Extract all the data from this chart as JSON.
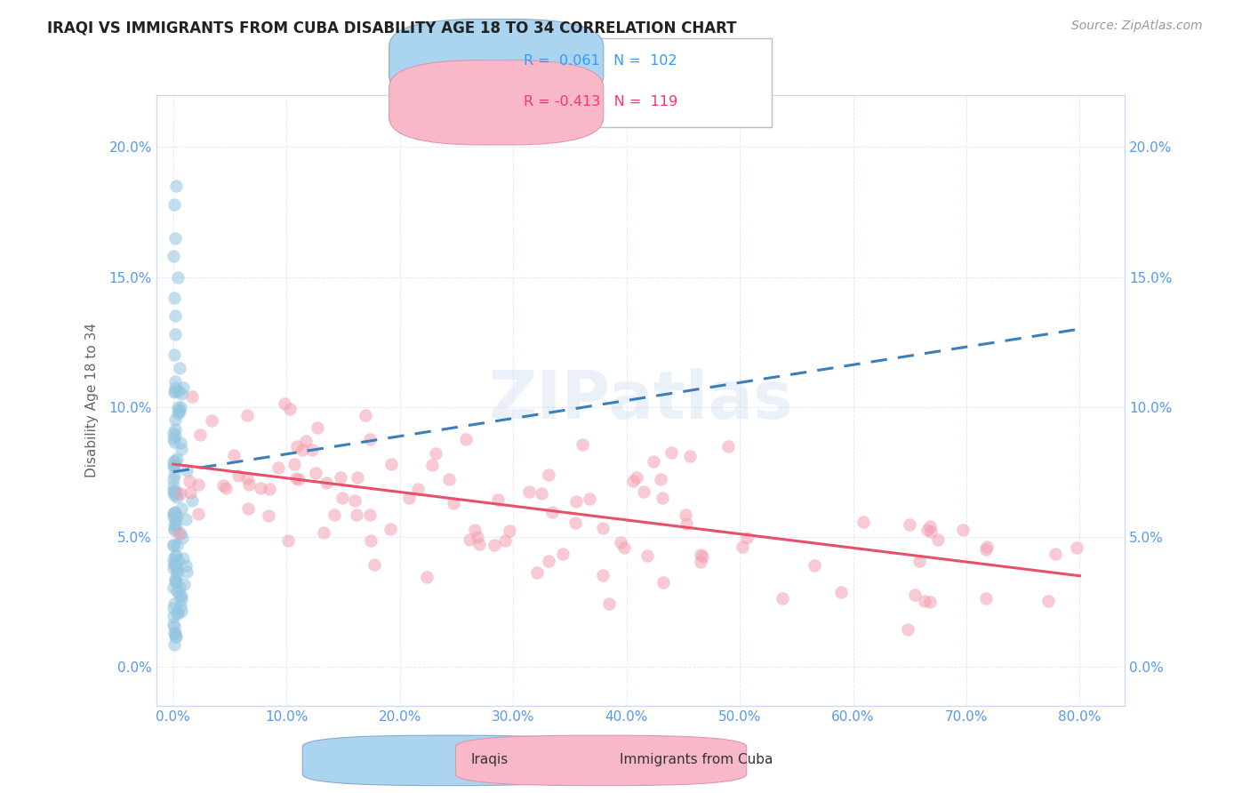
{
  "title": "IRAQI VS IMMIGRANTS FROM CUBA DISABILITY AGE 18 TO 34 CORRELATION CHART",
  "source": "Source: ZipAtlas.com",
  "ylabel": "Disability Age 18 to 34",
  "watermark": "ZIPatlas",
  "x_ticks": [
    0.0,
    10.0,
    20.0,
    30.0,
    40.0,
    50.0,
    60.0,
    70.0,
    80.0
  ],
  "y_ticks": [
    0.0,
    5.0,
    10.0,
    15.0,
    20.0
  ],
  "xlim": [
    -1.5,
    84
  ],
  "ylim": [
    -1.5,
    22
  ],
  "iraqi_color": "#93c6e0",
  "iraqi_line_color": "#3a7fba",
  "cuba_color": "#f4a0b0",
  "cuba_line_color": "#e8506a",
  "tick_color": "#5599ee",
  "axis_color": "#c8d8f0",
  "grid_color": "#dde8ff",
  "title_color": "#222222",
  "source_color": "#999999",
  "legend_R1_color": "#3399ff",
  "legend_R2_color": "#ff3366",
  "legend_box_edge": "#ccccdd",
  "iraqi_line_start_y": 7.5,
  "iraqi_line_end_y": 13.0,
  "cuba_line_start_y": 7.8,
  "cuba_line_end_y": 3.5
}
